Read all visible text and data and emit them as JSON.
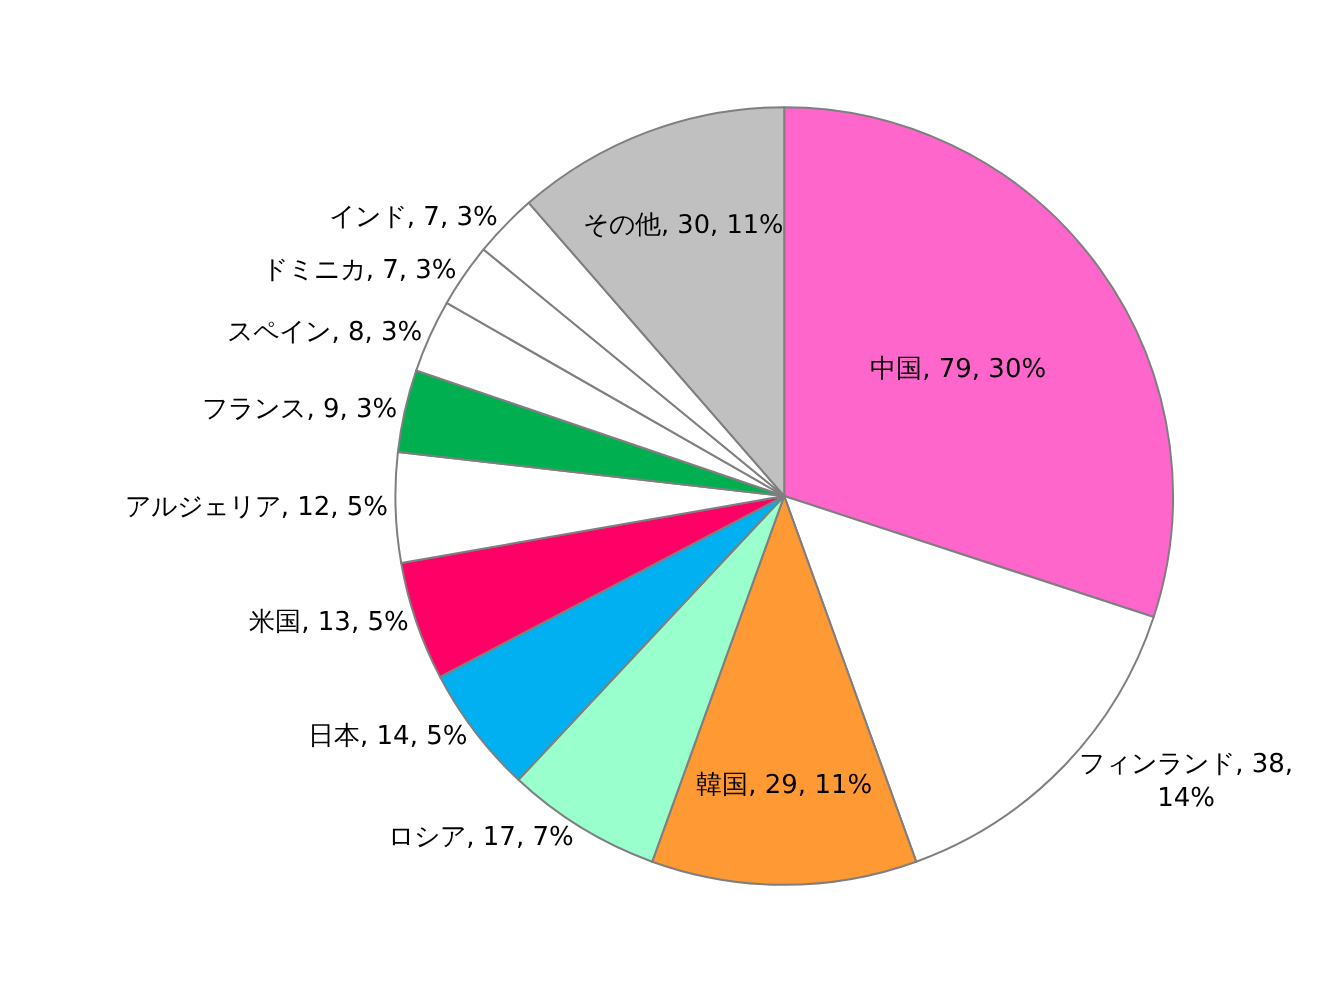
{
  "chart_data": {
    "type": "pie",
    "categories": [
      "中国",
      "フィンランド",
      "韓国",
      "ロシア",
      "日本",
      "米国",
      "アルジェリア",
      "フランス",
      "スペイン",
      "ドミニカ",
      "インド",
      "その他"
    ],
    "values": [
      79,
      38,
      29,
      17,
      14,
      13,
      12,
      9,
      8,
      7,
      7,
      30
    ],
    "value_labels": [
      "79, 30%",
      "38, 14%",
      "29, 11%",
      "17, 7%",
      "14, 5%",
      "13, 5%",
      "12, 5%",
      "9, 3%",
      "8, 3%",
      "7, 3%",
      "7, 3%",
      "30, 11%"
    ],
    "colors": [
      "#ff66cc",
      "#ffffff",
      "#ff9933",
      "#99ffcc",
      "#00b0f0",
      "#ff0066",
      "#ffffff",
      "#00b050",
      "#ffffff",
      "#ffffff",
      "#ffffff",
      "#c0c0c0"
    ],
    "legend": false
  }
}
